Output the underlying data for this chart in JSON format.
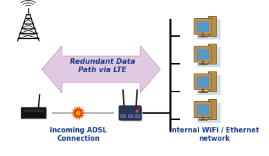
{
  "bg_color": "#ffffff",
  "arrow_color": "#dfc8e0",
  "arrow_edge_color": "#c8a0c0",
  "arrow_text": "Redundant Data\nPath via LTE",
  "arrow_text_color": "#1a3b8a",
  "arrow_text_fontsize": 7.5,
  "label_adsl": "Incoming ADSL\nConnection",
  "label_wifi": "Internal WiFi / Ethernet\nnetwork",
  "label_color": "#1a3b8a",
  "label_fontsize": 7,
  "line_color": "#aaaaaa",
  "connector_color": "#000000",
  "fig_width": 3.89,
  "fig_height": 2.25,
  "dpi": 100
}
